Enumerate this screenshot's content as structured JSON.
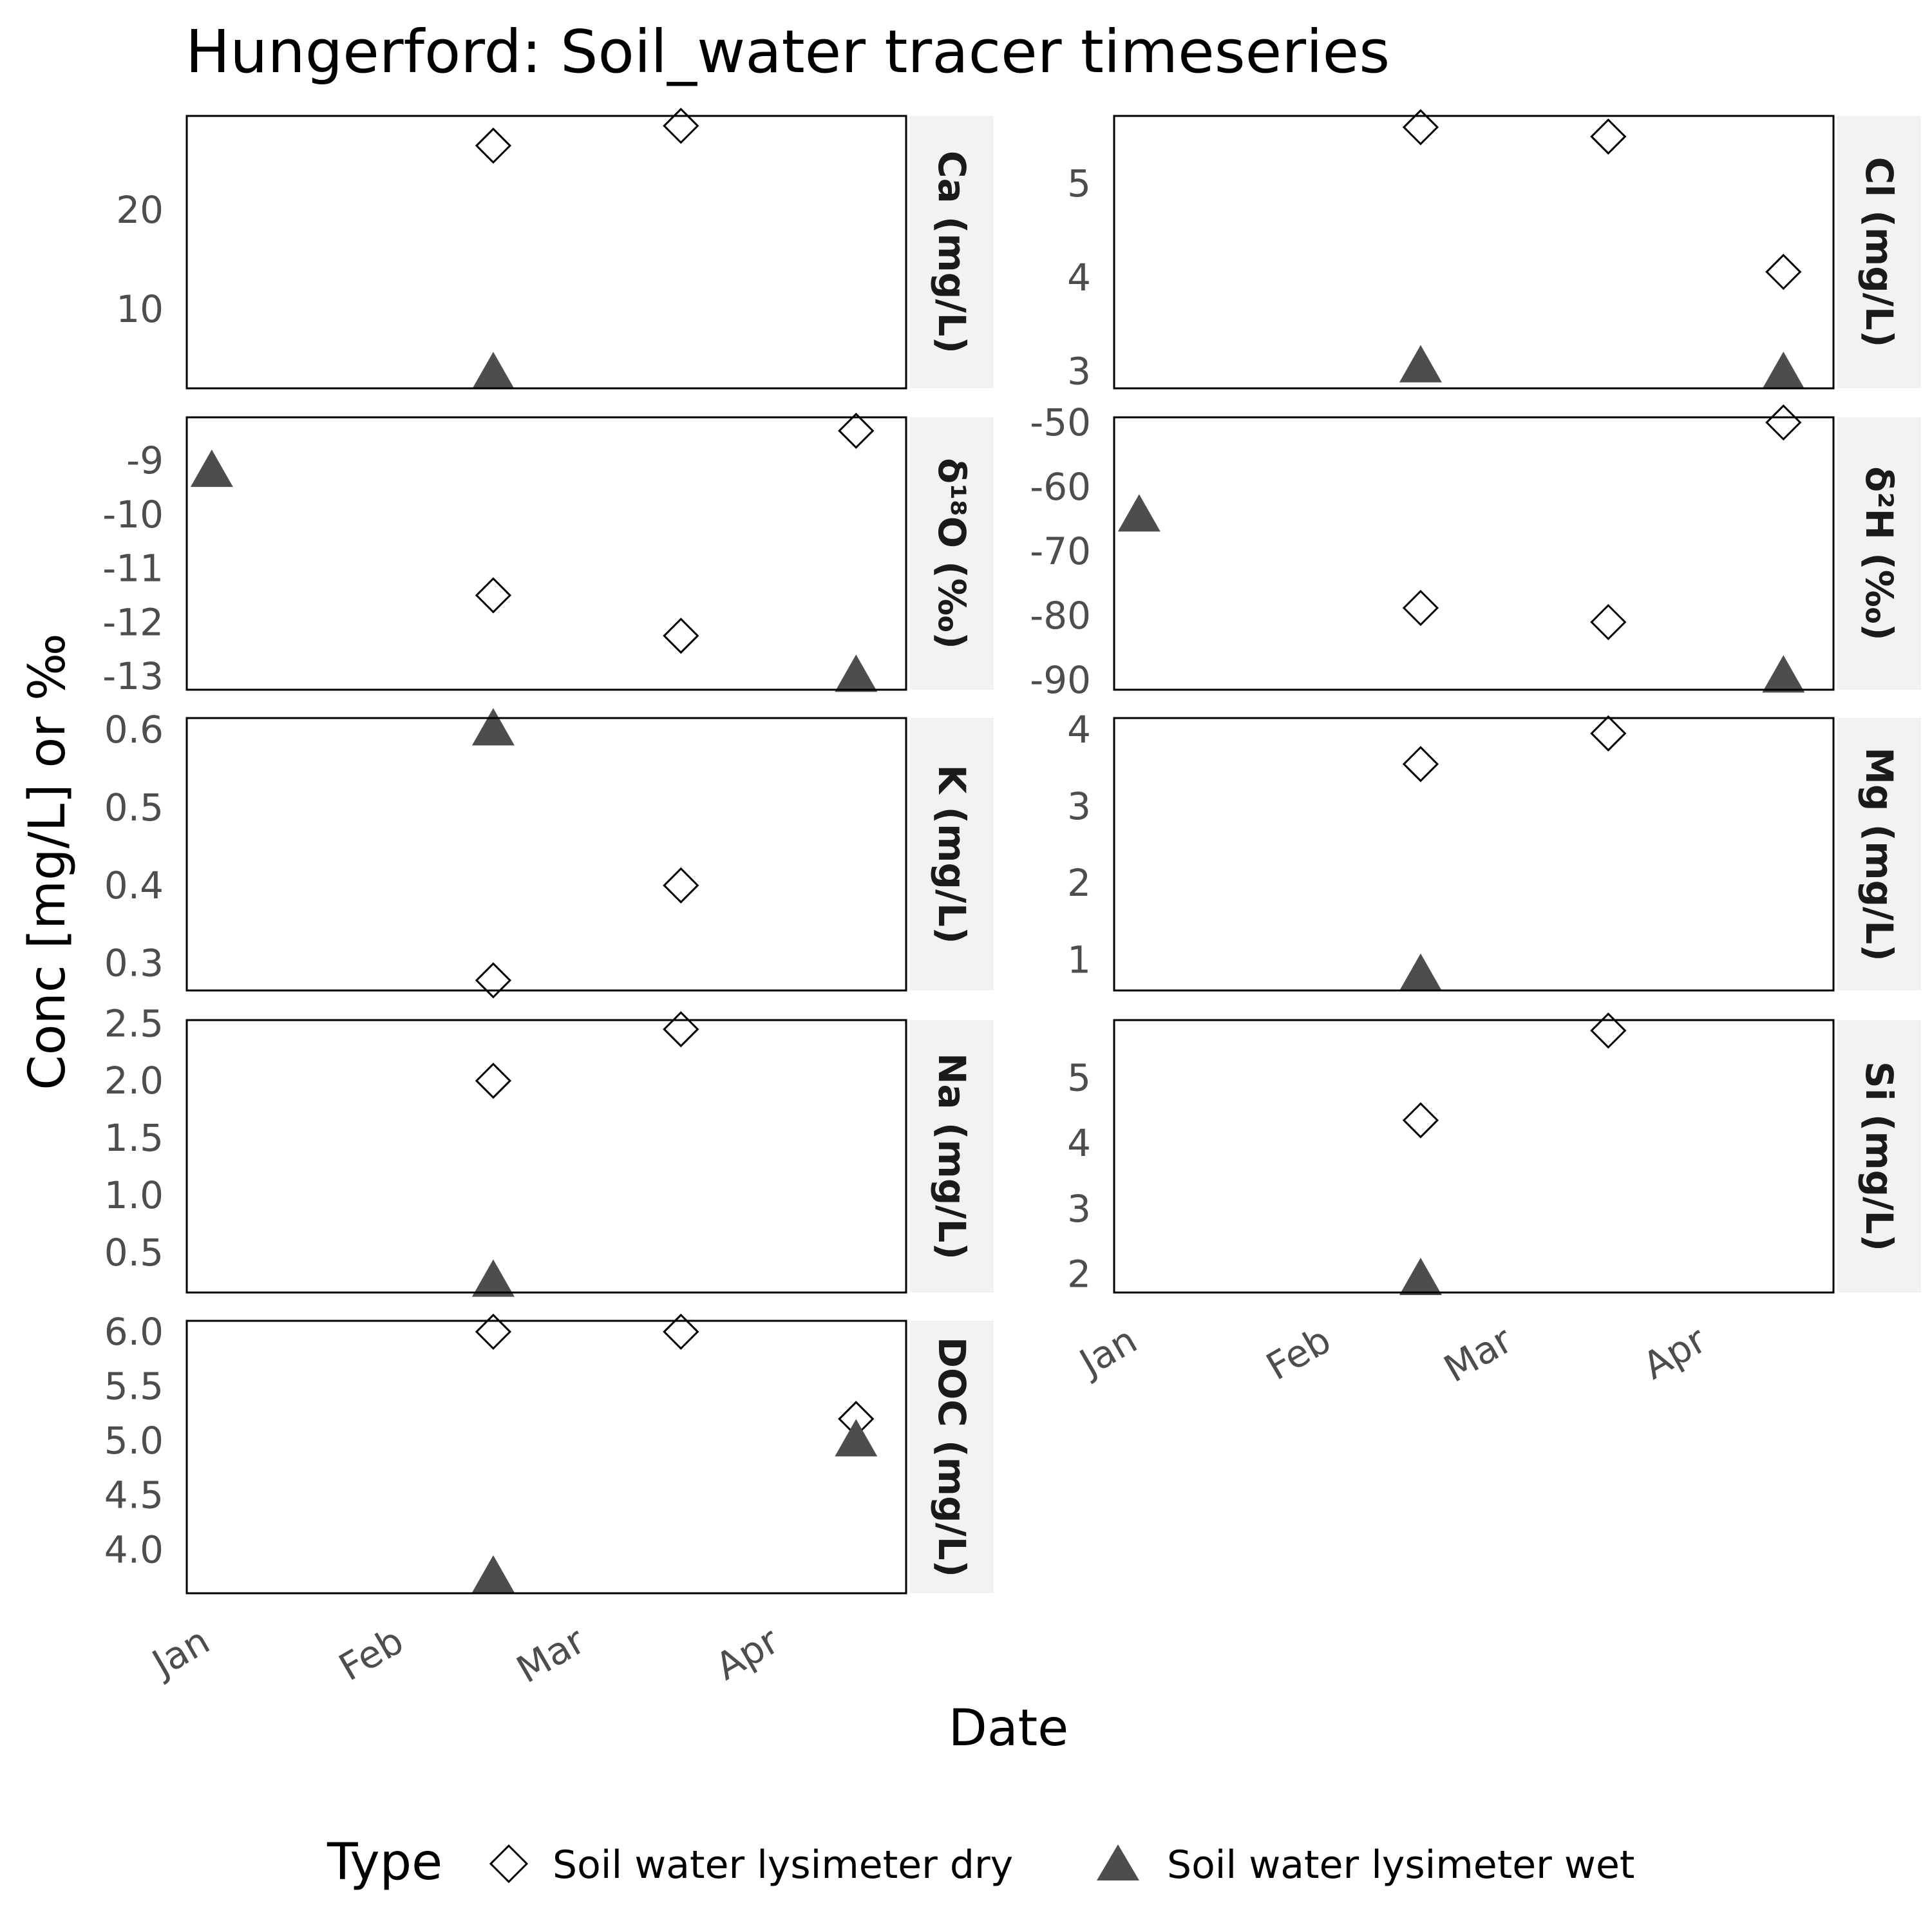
{
  "chart_data": {
    "type": "scatter",
    "title": "Hungerford: Soil_water tracer timeseries",
    "xlabel": "Date",
    "ylabel": "Conc [mg/L] or ‰",
    "x_ticks": [
      {
        "label": "Jan",
        "date": "2024-01-01"
      },
      {
        "label": "Feb",
        "date": "2024-02-01"
      },
      {
        "label": "Mar",
        "date": "2024-03-01"
      },
      {
        "label": "Apr",
        "date": "2024-04-01"
      }
    ],
    "xlim": [
      "2023-12-31",
      "2024-04-24"
    ],
    "legend": {
      "title": "Type",
      "position": "bottom",
      "items": [
        {
          "label": "Soil water lysimeter dry",
          "marker": "open-diamond",
          "color": "#000000"
        },
        {
          "label": "Soil water lysimeter wet",
          "marker": "filled-triangle",
          "color": "#4d4d4d"
        }
      ]
    },
    "panels": [
      {
        "strip": "Ca (mg/L)",
        "ylim": [
          2.0,
          29.5
        ],
        "yticks": [
          {
            "v": 10,
            "label": "10"
          },
          {
            "v": 20,
            "label": "20"
          }
        ],
        "dry": [
          {
            "x": "2024-02-18",
            "y": 26.5
          },
          {
            "x": "2024-03-19",
            "y": 28.5
          }
        ],
        "wet": [
          {
            "x": "2024-02-18",
            "y": 3.5
          }
        ]
      },
      {
        "strip": "Cl (mg/L)",
        "ylim": [
          2.82,
          5.72
        ],
        "yticks": [
          {
            "v": 3,
            "label": "3"
          },
          {
            "v": 4,
            "label": "4"
          },
          {
            "v": 5,
            "label": "5"
          }
        ],
        "dry": [
          {
            "x": "2024-02-18",
            "y": 5.6
          },
          {
            "x": "2024-03-19",
            "y": 5.5
          },
          {
            "x": "2024-04-16",
            "y": 4.06
          }
        ],
        "wet": [
          {
            "x": "2024-02-18",
            "y": 3.05
          },
          {
            "x": "2024-04-16",
            "y": 2.98
          }
        ]
      },
      {
        "strip": "δ¹⁸O (‰)",
        "ylim": [
          -13.25,
          -8.2
        ],
        "yticks": [
          {
            "v": -9,
            "label": "-9"
          },
          {
            "v": -10,
            "label": "-10"
          },
          {
            "v": -11,
            "label": "-11"
          },
          {
            "v": -12,
            "label": "-12"
          },
          {
            "v": -13,
            "label": "-13"
          }
        ],
        "dry": [
          {
            "x": "2024-02-18",
            "y": -11.5
          },
          {
            "x": "2024-03-19",
            "y": -12.25
          },
          {
            "x": "2024-04-16",
            "y": -8.45
          }
        ],
        "wet": [
          {
            "x": "2024-01-04",
            "y": -9.2
          },
          {
            "x": "2024-04-16",
            "y": -13.0
          }
        ]
      },
      {
        "strip": "δ²H (‰)",
        "ylim": [
          -91.5,
          -49.2
        ],
        "yticks": [
          {
            "v": -50,
            "label": "-50"
          },
          {
            "v": -60,
            "label": "-60"
          },
          {
            "v": -70,
            "label": "-70"
          },
          {
            "v": -80,
            "label": "-80"
          },
          {
            "v": -90,
            "label": "-90"
          }
        ],
        "dry": [
          {
            "x": "2024-02-18",
            "y": -78.8
          },
          {
            "x": "2024-03-19",
            "y": -81.0
          },
          {
            "x": "2024-04-16",
            "y": -50.0
          }
        ],
        "wet": [
          {
            "x": "2024-01-04",
            "y": -64.5
          },
          {
            "x": "2024-04-16",
            "y": -89.5
          }
        ]
      },
      {
        "strip": "K (mg/L)",
        "ylim": [
          0.265,
          0.615
        ],
        "yticks": [
          {
            "v": 0.3,
            "label": "0.3"
          },
          {
            "v": 0.4,
            "label": "0.4"
          },
          {
            "v": 0.5,
            "label": "0.5"
          },
          {
            "v": 0.6,
            "label": "0.6"
          }
        ],
        "dry": [
          {
            "x": "2024-02-18",
            "y": 0.278
          },
          {
            "x": "2024-03-19",
            "y": 0.4
          }
        ],
        "wet": [
          {
            "x": "2024-02-18",
            "y": 0.6
          }
        ]
      },
      {
        "strip": "Mg (mg/L)",
        "ylim": [
          0.6,
          4.15
        ],
        "yticks": [
          {
            "v": 1,
            "label": "1"
          },
          {
            "v": 2,
            "label": "2"
          },
          {
            "v": 3,
            "label": "3"
          },
          {
            "v": 4,
            "label": "4"
          }
        ],
        "dry": [
          {
            "x": "2024-02-18",
            "y": 3.55
          },
          {
            "x": "2024-03-19",
            "y": 3.95
          }
        ],
        "wet": [
          {
            "x": "2024-02-18",
            "y": 0.8
          }
        ]
      },
      {
        "strip": "Na (mg/L)",
        "ylim": [
          0.15,
          2.53
        ],
        "yticks": [
          {
            "v": 0.5,
            "label": "0.5"
          },
          {
            "v": 1.0,
            "label": "1.0"
          },
          {
            "v": 1.5,
            "label": "1.5"
          },
          {
            "v": 2.0,
            "label": "2.0"
          },
          {
            "v": 2.5,
            "label": "2.5"
          }
        ],
        "dry": [
          {
            "x": "2024-02-18",
            "y": 2.0
          },
          {
            "x": "2024-03-19",
            "y": 2.45
          }
        ],
        "wet": [
          {
            "x": "2024-02-18",
            "y": 0.25
          }
        ]
      },
      {
        "strip": "Si (mg/L)",
        "ylim": [
          1.72,
          5.88
        ],
        "yticks": [
          {
            "v": 2,
            "label": "2"
          },
          {
            "v": 3,
            "label": "3"
          },
          {
            "v": 4,
            "label": "4"
          },
          {
            "v": 5,
            "label": "5"
          }
        ],
        "dry": [
          {
            "x": "2024-02-18",
            "y": 4.35
          },
          {
            "x": "2024-03-19",
            "y": 5.72
          }
        ],
        "wet": [
          {
            "x": "2024-02-18",
            "y": 1.92
          }
        ]
      },
      {
        "strip": "DOC (mg/L)",
        "ylim": [
          3.6,
          6.1
        ],
        "yticks": [
          {
            "v": 4.0,
            "label": "4.0"
          },
          {
            "v": 4.5,
            "label": "4.5"
          },
          {
            "v": 5.0,
            "label": "5.0"
          },
          {
            "v": 5.5,
            "label": "5.5"
          },
          {
            "v": 6.0,
            "label": "6.0"
          }
        ],
        "dry": [
          {
            "x": "2024-02-18",
            "y": 6.0
          },
          {
            "x": "2024-03-19",
            "y": 6.0
          },
          {
            "x": "2024-04-16",
            "y": 5.2
          }
        ],
        "wet": [
          {
            "x": "2024-02-18",
            "y": 3.75
          },
          {
            "x": "2024-04-16",
            "y": 5.0
          }
        ]
      }
    ]
  }
}
